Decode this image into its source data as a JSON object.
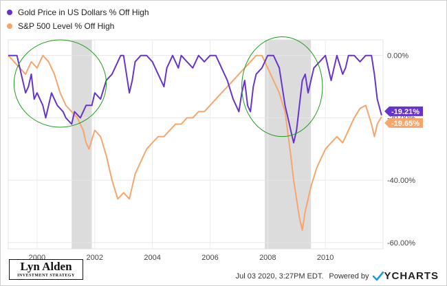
{
  "chart_data": {
    "type": "line",
    "series": [
      {
        "name": "Gold Price in US Dollars % Off High",
        "color": "#6633cc",
        "end_label": "-19.21%",
        "points": [
          [
            1999.0,
            0
          ],
          [
            1999.3,
            0
          ],
          [
            1999.4,
            -4
          ],
          [
            1999.5,
            -8
          ],
          [
            1999.6,
            -12
          ],
          [
            1999.7,
            -10
          ],
          [
            1999.8,
            -6
          ],
          [
            1999.9,
            -14
          ],
          [
            2000.0,
            -12
          ],
          [
            2000.2,
            -16
          ],
          [
            2000.3,
            -20
          ],
          [
            2000.5,
            -12
          ],
          [
            2000.7,
            -16
          ],
          [
            2000.9,
            -18
          ],
          [
            2001.0,
            -20
          ],
          [
            2001.2,
            -22
          ],
          [
            2001.3,
            -18
          ],
          [
            2001.5,
            -20
          ],
          [
            2001.7,
            -16
          ],
          [
            2001.9,
            -16
          ],
          [
            2002.0,
            -12
          ],
          [
            2002.2,
            -14
          ],
          [
            2002.4,
            -8
          ],
          [
            2002.6,
            -6
          ],
          [
            2002.8,
            -2
          ],
          [
            2002.9,
            0
          ],
          [
            2003.0,
            0
          ],
          [
            2003.1,
            -6
          ],
          [
            2003.2,
            -12
          ],
          [
            2003.3,
            -8
          ],
          [
            2003.4,
            -2
          ],
          [
            2003.6,
            0
          ],
          [
            2003.8,
            0
          ],
          [
            2004.0,
            -2
          ],
          [
            2004.2,
            -6
          ],
          [
            2004.4,
            -10
          ],
          [
            2004.5,
            -4
          ],
          [
            2004.7,
            0
          ],
          [
            2004.9,
            -4
          ],
          [
            2005.0,
            0
          ],
          [
            2005.2,
            -2
          ],
          [
            2005.4,
            -4
          ],
          [
            2005.6,
            0
          ],
          [
            2005.8,
            -2
          ],
          [
            2006.0,
            0
          ],
          [
            2006.2,
            0
          ],
          [
            2006.4,
            -4
          ],
          [
            2006.6,
            -8
          ],
          [
            2006.8,
            -14
          ],
          [
            2006.9,
            -16
          ],
          [
            2007.0,
            -18
          ],
          [
            2007.1,
            -12
          ],
          [
            2007.2,
            -8
          ],
          [
            2007.3,
            -16
          ],
          [
            2007.4,
            -18
          ],
          [
            2007.5,
            -10
          ],
          [
            2007.6,
            -6
          ],
          [
            2007.8,
            -4
          ],
          [
            2008.0,
            0
          ],
          [
            2008.2,
            0
          ],
          [
            2008.4,
            -4
          ],
          [
            2008.5,
            -10
          ],
          [
            2008.6,
            -16
          ],
          [
            2008.7,
            -20
          ],
          [
            2008.8,
            -24
          ],
          [
            2008.9,
            -28
          ],
          [
            2009.0,
            -24
          ],
          [
            2009.1,
            -16
          ],
          [
            2009.2,
            -8
          ],
          [
            2009.3,
            -6
          ],
          [
            2009.4,
            -12
          ],
          [
            2009.5,
            -8
          ],
          [
            2009.6,
            -4
          ],
          [
            2009.8,
            -2
          ],
          [
            2010.0,
            0
          ],
          [
            2010.2,
            -8
          ],
          [
            2010.3,
            -4
          ],
          [
            2010.4,
            0
          ],
          [
            2010.6,
            -6
          ],
          [
            2010.7,
            -4
          ],
          [
            2010.8,
            0
          ],
          [
            2011.0,
            0
          ],
          [
            2011.2,
            -2
          ],
          [
            2011.4,
            0
          ],
          [
            2011.6,
            0
          ],
          [
            2011.7,
            -6
          ],
          [
            2011.8,
            -14
          ],
          [
            2011.95,
            -19.21
          ]
        ]
      },
      {
        "name": "S&P 500 Level % Off High",
        "color": "#f7a56b",
        "end_label": "-19.65%",
        "points": [
          [
            1999.0,
            0
          ],
          [
            1999.2,
            -2
          ],
          [
            1999.4,
            -4
          ],
          [
            1999.6,
            -6
          ],
          [
            1999.8,
            -2
          ],
          [
            2000.0,
            -4
          ],
          [
            2000.2,
            0
          ],
          [
            2000.4,
            -2
          ],
          [
            2000.6,
            -6
          ],
          [
            2000.8,
            -12
          ],
          [
            2001.0,
            -16
          ],
          [
            2001.2,
            -18
          ],
          [
            2001.4,
            -20
          ],
          [
            2001.6,
            -24
          ],
          [
            2001.7,
            -28
          ],
          [
            2001.8,
            -30
          ],
          [
            2002.0,
            -24
          ],
          [
            2002.2,
            -26
          ],
          [
            2002.4,
            -32
          ],
          [
            2002.6,
            -40
          ],
          [
            2002.8,
            -46
          ],
          [
            2003.0,
            -44
          ],
          [
            2003.2,
            -46
          ],
          [
            2003.4,
            -38
          ],
          [
            2003.6,
            -34
          ],
          [
            2003.8,
            -30
          ],
          [
            2004.0,
            -28
          ],
          [
            2004.2,
            -26
          ],
          [
            2004.4,
            -26
          ],
          [
            2004.6,
            -24
          ],
          [
            2004.8,
            -22
          ],
          [
            2005.0,
            -22
          ],
          [
            2005.2,
            -20
          ],
          [
            2005.4,
            -20
          ],
          [
            2005.6,
            -18
          ],
          [
            2005.8,
            -18
          ],
          [
            2006.0,
            -16
          ],
          [
            2006.2,
            -14
          ],
          [
            2006.4,
            -12
          ],
          [
            2006.6,
            -10
          ],
          [
            2006.8,
            -8
          ],
          [
            2007.0,
            -6
          ],
          [
            2007.2,
            -4
          ],
          [
            2007.4,
            -2
          ],
          [
            2007.6,
            0
          ],
          [
            2007.8,
            0
          ],
          [
            2008.0,
            -4
          ],
          [
            2008.2,
            -8
          ],
          [
            2008.4,
            -12
          ],
          [
            2008.6,
            -18
          ],
          [
            2008.8,
            -32
          ],
          [
            2008.9,
            -40
          ],
          [
            2009.0,
            -46
          ],
          [
            2009.1,
            -52
          ],
          [
            2009.2,
            -56
          ],
          [
            2009.3,
            -50
          ],
          [
            2009.5,
            -42
          ],
          [
            2009.7,
            -36
          ],
          [
            2009.9,
            -32
          ],
          [
            2010.0,
            -30
          ],
          [
            2010.2,
            -28
          ],
          [
            2010.4,
            -26
          ],
          [
            2010.6,
            -28
          ],
          [
            2010.8,
            -24
          ],
          [
            2011.0,
            -20
          ],
          [
            2011.2,
            -17
          ],
          [
            2011.4,
            -16
          ],
          [
            2011.6,
            -22
          ],
          [
            2011.7,
            -26
          ],
          [
            2011.8,
            -22
          ],
          [
            2011.95,
            -19.65
          ]
        ]
      }
    ],
    "xlim": [
      1999.0,
      2012.0
    ],
    "ylim": [
      -62,
      5
    ],
    "x_ticks": [
      2000,
      2002,
      2004,
      2006,
      2008,
      2010
    ],
    "x_tick_labels": [
      "2000",
      "2002",
      "2004",
      "2006",
      "2008",
      "2010"
    ],
    "y_ticks": [
      0,
      -20,
      -40,
      -60
    ],
    "y_tick_labels": [
      "0.00%",
      "-20.00%",
      "-40.00%",
      "-60.00%"
    ],
    "recessions": [
      [
        2001.2,
        2001.9
      ],
      [
        2007.9,
        2009.5
      ]
    ],
    "annotations": [
      {
        "type": "ellipse",
        "center": [
          2000.8,
          -9
        ],
        "radius": [
          1.6,
          14
        ],
        "color": "#1a9c1a"
      },
      {
        "type": "ellipse",
        "center": [
          2008.5,
          -10
        ],
        "radius": [
          1.4,
          16
        ],
        "color": "#1a9c1a"
      }
    ],
    "grid": true,
    "legend": "top-left"
  },
  "branding": {
    "logo_name": "Lyn Alden",
    "logo_sub": "INVESTMENT STRATEGY",
    "timestamp": "Jul 03 2020, 3:27PM EDT.",
    "powered_by": "Powered by",
    "ycharts": "YCHARTS"
  }
}
